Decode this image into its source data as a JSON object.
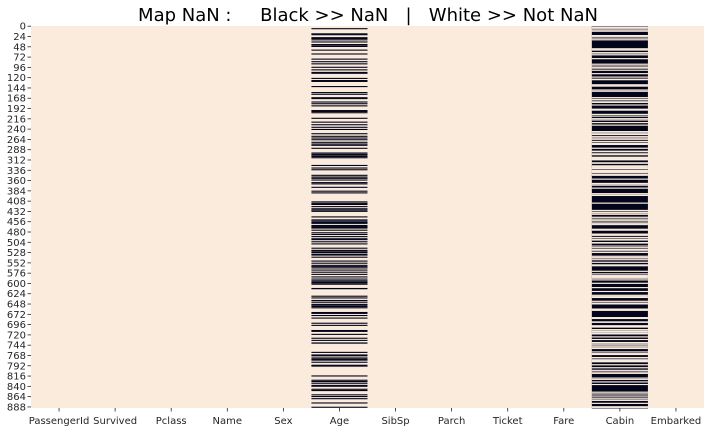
{
  "chart_data": {
    "type": "heatmap",
    "title": "Map NaN :     Black >> NaN   |   White >> Not NaN",
    "columns": [
      "PassengerId",
      "Survived",
      "Pclass",
      "Name",
      "Sex",
      "Age",
      "SibSp",
      "Parch",
      "Ticket",
      "Fare",
      "Cabin",
      "Embarked"
    ],
    "row_count": 891,
    "y_ticks": [
      0,
      24,
      48,
      72,
      96,
      120,
      144,
      168,
      192,
      216,
      240,
      264,
      288,
      312,
      336,
      360,
      384,
      408,
      432,
      456,
      480,
      504,
      528,
      552,
      576,
      600,
      624,
      648,
      672,
      696,
      720,
      744,
      768,
      792,
      816,
      840,
      864,
      888
    ],
    "missing_rows": {
      "Age": [
        5,
        17,
        19,
        26,
        28,
        29,
        31,
        32,
        36,
        42,
        45,
        46,
        47,
        48,
        55,
        64,
        65,
        76,
        77,
        82,
        87,
        95,
        101,
        107,
        109,
        121,
        126,
        128,
        140,
        154,
        158,
        159,
        166,
        168,
        176,
        180,
        181,
        185,
        186,
        196,
        198,
        201,
        214,
        223,
        229,
        235,
        240,
        241,
        250,
        256,
        260,
        264,
        270,
        274,
        277,
        284,
        295,
        298,
        300,
        301,
        303,
        304,
        306,
        324,
        330,
        334,
        335,
        347,
        351,
        354,
        358,
        359,
        364,
        367,
        368,
        375,
        384,
        388,
        409,
        410,
        411,
        413,
        415,
        420,
        425,
        428,
        431,
        444,
        451,
        454,
        457,
        459,
        464,
        466,
        468,
        470,
        475,
        481,
        485,
        490,
        495,
        497,
        502,
        507,
        517,
        522,
        524,
        527,
        531,
        533,
        538,
        547,
        552,
        557,
        560,
        563,
        564,
        568,
        573,
        578,
        584,
        589,
        593,
        596,
        598,
        601,
        602,
        611,
        612,
        613,
        629,
        633,
        639,
        643,
        648,
        650,
        653,
        656,
        667,
        669,
        674,
        680,
        692,
        697,
        709,
        711,
        718,
        727,
        732,
        738,
        739,
        740,
        760,
        766,
        768,
        773,
        776,
        778,
        783,
        790,
        792,
        793,
        815,
        825,
        826,
        828,
        832,
        837,
        839,
        846,
        849,
        859,
        863,
        868,
        878,
        888
      ],
      "Cabin": "all-except",
      "Cabin_present": [
        1,
        3,
        6,
        10,
        11,
        21,
        23,
        27,
        31,
        52,
        54,
        55,
        61,
        62,
        66,
        75,
        88,
        92,
        96,
        97,
        102,
        110,
        118,
        123,
        124,
        136,
        137,
        139,
        148,
        151,
        166,
        170,
        174,
        177,
        183,
        193,
        194,
        195,
        205,
        209,
        215,
        218,
        224,
        230,
        245,
        248,
        251,
        252,
        257,
        258,
        262,
        263,
        268,
        269,
        273,
        275,
        284,
        291,
        292,
        297,
        299,
        305,
        306,
        307,
        309,
        310,
        311,
        318,
        319,
        325,
        327,
        329,
        331,
        332,
        336,
        337,
        339,
        341,
        345,
        347,
        356,
        366,
        369,
        370,
        377,
        390,
        393,
        394,
        412,
        429,
        430,
        434,
        435,
        438,
        445,
        449,
        452,
        456,
        460,
        462,
        473,
        475,
        484,
        486,
        487,
        492,
        496,
        498,
        504,
        505,
        512,
        516,
        520,
        523,
        527,
        536,
        539,
        540,
        544,
        550,
        556,
        558,
        571,
        577,
        581,
        583,
        585,
        587,
        591,
        599,
        609,
        618,
        627,
        630,
        632,
        641,
        645,
        647,
        659,
        660,
        662,
        679,
        681,
        689,
        690,
        698,
        699,
        700,
        701,
        707,
        710,
        712,
        715,
        716,
        717,
        724,
        730,
        737,
        740,
        741,
        745,
        748,
        751,
        759,
        763,
        765,
        772,
        776,
        779,
        781,
        782,
        789,
        796,
        802,
        806,
        809,
        820,
        823,
        829,
        835,
        853,
        857,
        862,
        867,
        871,
        872,
        879,
        887,
        889
      ]
    },
    "colors": {
      "nan": "#03051a",
      "not_nan": "#faebdd"
    }
  }
}
